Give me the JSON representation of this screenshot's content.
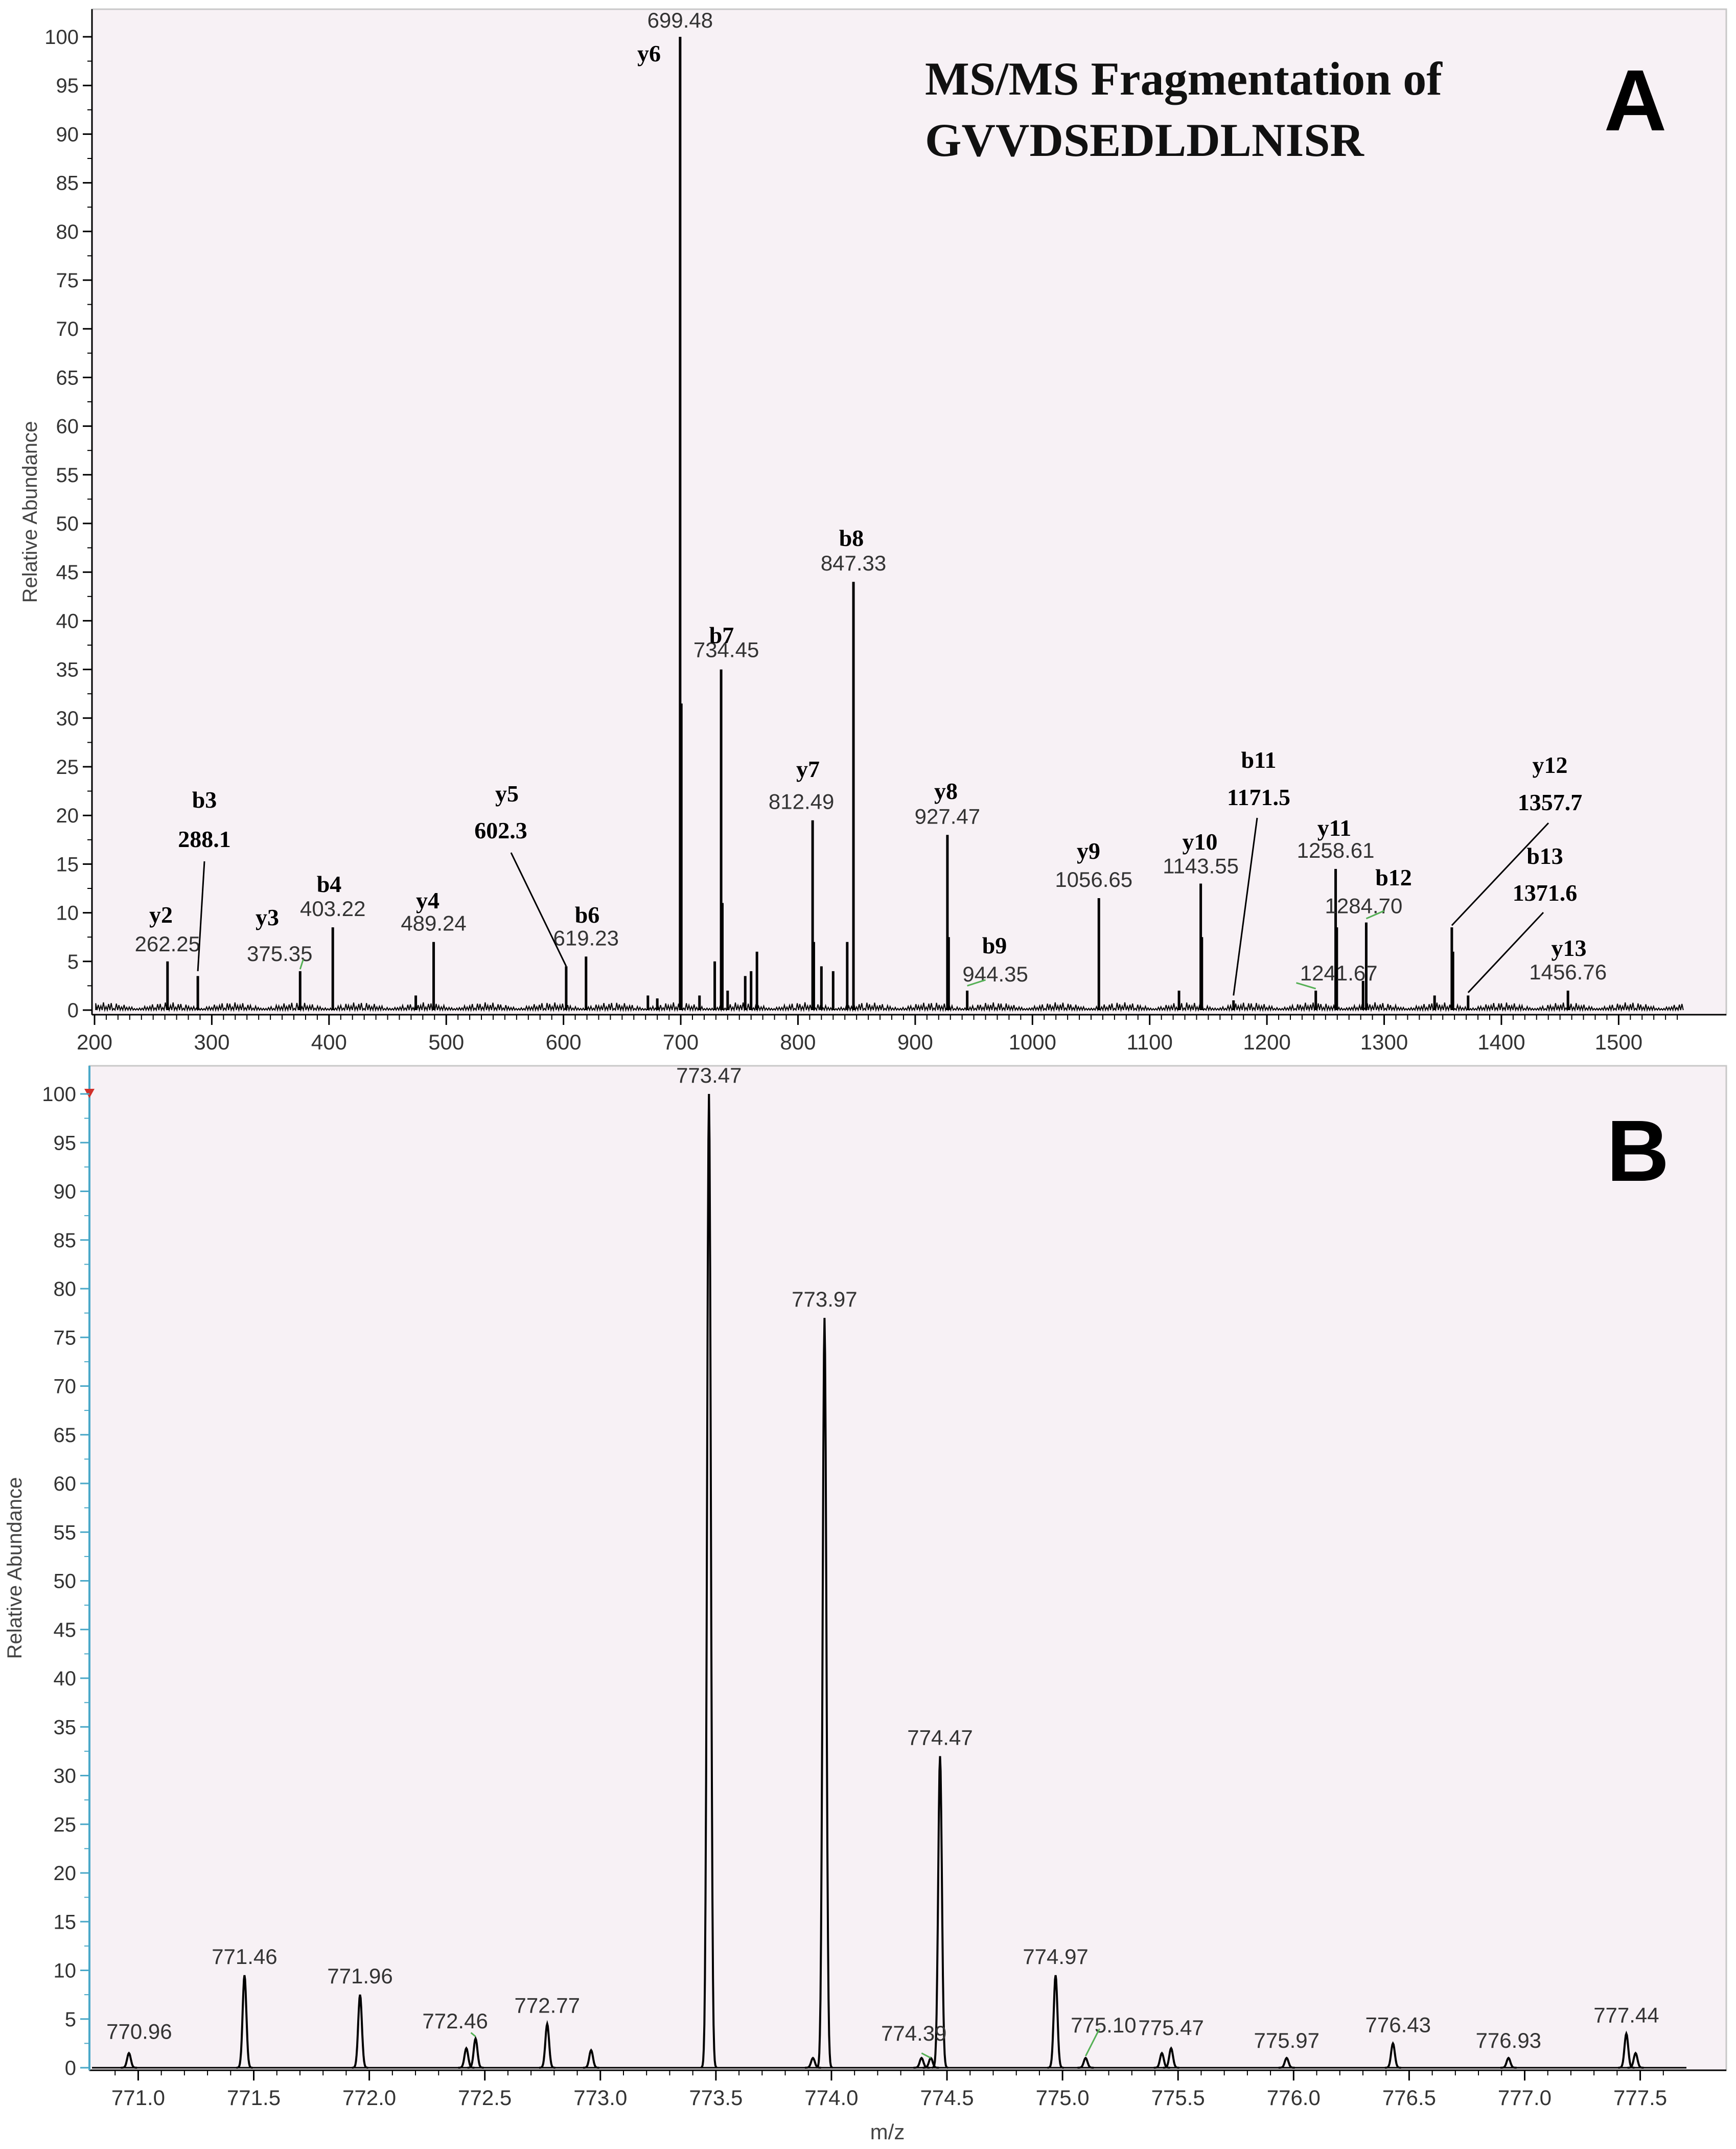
{
  "chart_data": [
    {
      "type": "bar",
      "panel_letter": "A",
      "title": "MS/MS Fragmentation of",
      "subtitle": "GVVDSEDLDLNISR",
      "xlabel": "",
      "ylabel": "Relative Abundance",
      "xlim": [
        200,
        1560
      ],
      "ylim": [
        0,
        100
      ],
      "x_ticks": [
        200,
        300,
        400,
        500,
        600,
        700,
        800,
        900,
        1000,
        1100,
        1200,
        1300,
        1400,
        1500
      ],
      "y_ticks": [
        0,
        5,
        10,
        15,
        20,
        25,
        30,
        35,
        40,
        45,
        50,
        55,
        60,
        65,
        70,
        75,
        80,
        85,
        90,
        95,
        100
      ],
      "peaks": [
        {
          "x": 262.25,
          "y": 5,
          "label": "262.25"
        },
        {
          "x": 288.1,
          "y": 3.5,
          "label": ""
        },
        {
          "x": 375.35,
          "y": 4,
          "label": "375.35"
        },
        {
          "x": 403.22,
          "y": 8.5,
          "label": "403.22"
        },
        {
          "x": 474,
          "y": 1.5,
          "label": ""
        },
        {
          "x": 489.24,
          "y": 7,
          "label": "489.24"
        },
        {
          "x": 602.3,
          "y": 4.5,
          "label": ""
        },
        {
          "x": 619.23,
          "y": 5.5,
          "label": "619.23"
        },
        {
          "x": 672,
          "y": 1.5,
          "label": ""
        },
        {
          "x": 680,
          "y": 1.2,
          "label": ""
        },
        {
          "x": 699.48,
          "y": 100,
          "label": "699.48"
        },
        {
          "x": 700.5,
          "y": 31.5,
          "label": ""
        },
        {
          "x": 716,
          "y": 1.5,
          "label": ""
        },
        {
          "x": 729,
          "y": 5,
          "label": ""
        },
        {
          "x": 734.45,
          "y": 35,
          "label": "734.45"
        },
        {
          "x": 735.5,
          "y": 11,
          "label": ""
        },
        {
          "x": 740,
          "y": 2,
          "label": ""
        },
        {
          "x": 755,
          "y": 3.5,
          "label": ""
        },
        {
          "x": 760,
          "y": 4,
          "label": ""
        },
        {
          "x": 765,
          "y": 6,
          "label": ""
        },
        {
          "x": 812.49,
          "y": 19.5,
          "label": "812.49"
        },
        {
          "x": 813.5,
          "y": 7,
          "label": ""
        },
        {
          "x": 820,
          "y": 4.5,
          "label": ""
        },
        {
          "x": 830,
          "y": 4,
          "label": ""
        },
        {
          "x": 842,
          "y": 7,
          "label": ""
        },
        {
          "x": 847.33,
          "y": 44,
          "label": "847.33"
        },
        {
          "x": 927.47,
          "y": 18,
          "label": "927.47"
        },
        {
          "x": 928.5,
          "y": 7.5,
          "label": ""
        },
        {
          "x": 944.35,
          "y": 2,
          "label": "944.35"
        },
        {
          "x": 1056.65,
          "y": 11.5,
          "label": "1056.65"
        },
        {
          "x": 1125,
          "y": 2,
          "label": ""
        },
        {
          "x": 1143.55,
          "y": 13,
          "label": "1143.55"
        },
        {
          "x": 1144.5,
          "y": 7.5,
          "label": ""
        },
        {
          "x": 1171.5,
          "y": 1,
          "label": ""
        },
        {
          "x": 1241.67,
          "y": 2,
          "label": "1241.67"
        },
        {
          "x": 1258.61,
          "y": 14.5,
          "label": "1258.61"
        },
        {
          "x": 1259.6,
          "y": 8.5,
          "label": ""
        },
        {
          "x": 1282,
          "y": 3,
          "label": ""
        },
        {
          "x": 1284.7,
          "y": 9,
          "label": "1284.70"
        },
        {
          "x": 1343,
          "y": 1.5,
          "label": ""
        },
        {
          "x": 1357.7,
          "y": 8.5,
          "label": ""
        },
        {
          "x": 1358.7,
          "y": 6,
          "label": ""
        },
        {
          "x": 1371.6,
          "y": 1.5,
          "label": ""
        },
        {
          "x": 1456.76,
          "y": 2,
          "label": "1456.76"
        }
      ],
      "ion_labels": [
        {
          "ion": "y2",
          "mz": "",
          "at_x": 262.25
        },
        {
          "ion": "b3",
          "mz": "288.1",
          "at_x": 288.1
        },
        {
          "ion": "y3",
          "mz": "",
          "at_x": 375.35
        },
        {
          "ion": "b4",
          "mz": "",
          "at_x": 403.22
        },
        {
          "ion": "y4",
          "mz": "",
          "at_x": 489.24
        },
        {
          "ion": "y5",
          "mz": "602.3",
          "at_x": 602.3
        },
        {
          "ion": "b6",
          "mz": "",
          "at_x": 619.23
        },
        {
          "ion": "y6",
          "mz": "",
          "at_x": 699.48
        },
        {
          "ion": "b7",
          "mz": "",
          "at_x": 734.45
        },
        {
          "ion": "y7",
          "mz": "",
          "at_x": 812.49
        },
        {
          "ion": "b8",
          "mz": "",
          "at_x": 847.33
        },
        {
          "ion": "y8",
          "mz": "",
          "at_x": 927.47
        },
        {
          "ion": "b9",
          "mz": "",
          "at_x": 944.35
        },
        {
          "ion": "y9",
          "mz": "",
          "at_x": 1056.65
        },
        {
          "ion": "y10",
          "mz": "",
          "at_x": 1143.55
        },
        {
          "ion": "b11",
          "mz": "1171.5",
          "at_x": 1171.5
        },
        {
          "ion": "y11",
          "mz": "",
          "at_x": 1258.61
        },
        {
          "ion": "b12",
          "mz": "",
          "at_x": 1284.7
        },
        {
          "ion": "y12",
          "mz": "1357.7",
          "at_x": 1357.7
        },
        {
          "ion": "b13",
          "mz": "1371.6",
          "at_x": 1371.6
        },
        {
          "ion": "y13",
          "mz": "",
          "at_x": 1456.76
        }
      ]
    },
    {
      "type": "line",
      "panel_letter": "B",
      "xlabel": "m/z",
      "ylabel": "Relative Abundance",
      "xlim": [
        770.8,
        777.7
      ],
      "ylim": [
        0,
        100
      ],
      "x_ticks": [
        "771.0",
        "771.5",
        "772.0",
        "772.5",
        "773.0",
        "773.5",
        "774.0",
        "774.5",
        "775.0",
        "775.5",
        "776.0",
        "776.5",
        "777.0",
        "777.5"
      ],
      "y_ticks": [
        0,
        5,
        10,
        15,
        20,
        25,
        30,
        35,
        40,
        45,
        50,
        55,
        60,
        65,
        70,
        75,
        80,
        85,
        90,
        95,
        100
      ],
      "peaks": [
        {
          "x": 770.96,
          "y": 1.5,
          "label": "770.96"
        },
        {
          "x": 771.46,
          "y": 9.5,
          "label": "771.46"
        },
        {
          "x": 771.96,
          "y": 7.5,
          "label": "771.96"
        },
        {
          "x": 772.42,
          "y": 2,
          "label": ""
        },
        {
          "x": 772.46,
          "y": 3,
          "label": "772.46"
        },
        {
          "x": 772.77,
          "y": 4.5,
          "label": "772.77"
        },
        {
          "x": 772.96,
          "y": 1.8,
          "label": ""
        },
        {
          "x": 773.47,
          "y": 100,
          "label": "773.47"
        },
        {
          "x": 773.92,
          "y": 1,
          "label": ""
        },
        {
          "x": 773.97,
          "y": 77,
          "label": "773.97"
        },
        {
          "x": 774.39,
          "y": 1,
          "label": "774.39"
        },
        {
          "x": 774.43,
          "y": 1,
          "label": ""
        },
        {
          "x": 774.47,
          "y": 32,
          "label": "774.47"
        },
        {
          "x": 774.97,
          "y": 9.5,
          "label": "774.97"
        },
        {
          "x": 775.1,
          "y": 1,
          "label": "775.10"
        },
        {
          "x": 775.43,
          "y": 1.5,
          "label": ""
        },
        {
          "x": 775.47,
          "y": 2,
          "label": "775.47"
        },
        {
          "x": 775.97,
          "y": 1,
          "label": "775.97"
        },
        {
          "x": 776.43,
          "y": 2.5,
          "label": "776.43"
        },
        {
          "x": 776.93,
          "y": 1,
          "label": "776.93"
        },
        {
          "x": 777.44,
          "y": 3.5,
          "label": "777.44"
        },
        {
          "x": 777.48,
          "y": 1.5,
          "label": ""
        }
      ]
    }
  ]
}
